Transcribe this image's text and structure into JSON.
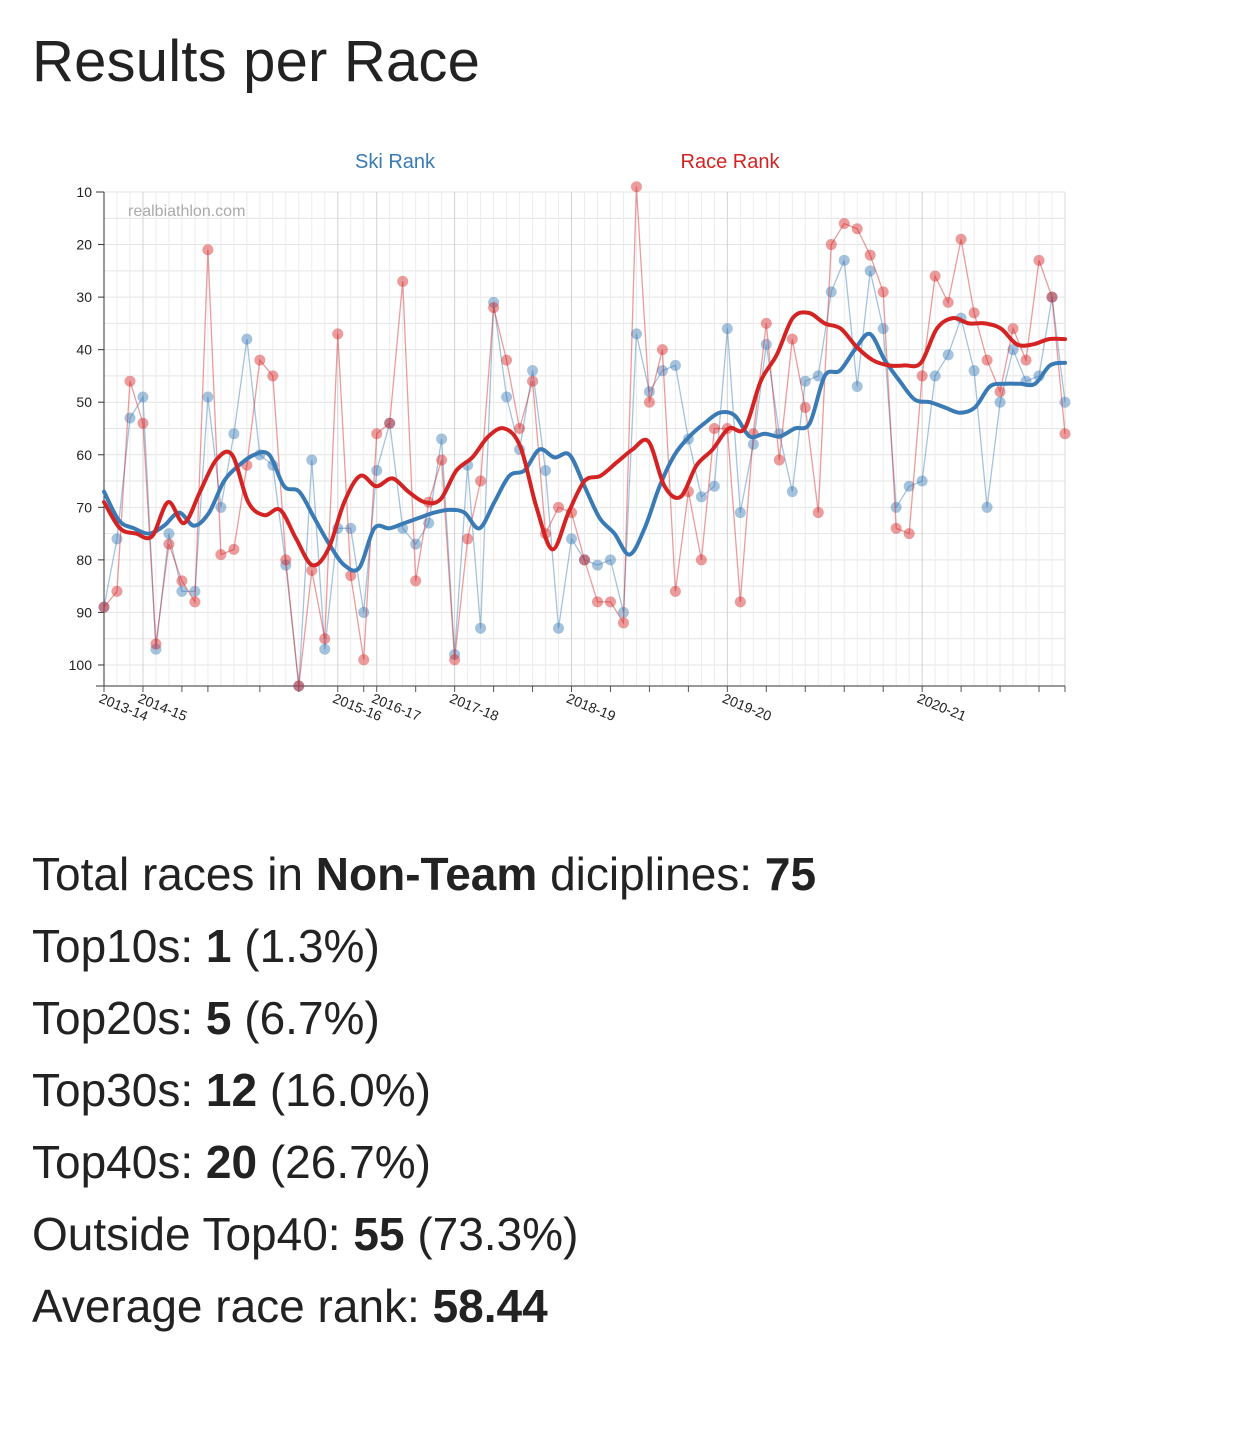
{
  "page_title": "Results per Race",
  "chart_data": {
    "type": "line",
    "watermark": "realbiathlon.com",
    "y_axis": {
      "reversed": true,
      "range": [
        10,
        104
      ],
      "ticks": [
        10,
        20,
        30,
        40,
        50,
        60,
        70,
        80,
        90,
        100
      ]
    },
    "seasons": [
      {
        "label": "2013-14",
        "race": 0
      },
      {
        "label": "2014-15",
        "race": 3
      },
      {
        "label": "2015-16",
        "race": 18
      },
      {
        "label": "2016-17",
        "race": 21
      },
      {
        "label": "2017-18",
        "race": 27
      },
      {
        "label": "2018-19",
        "race": 36
      },
      {
        "label": "2019-20",
        "race": 48
      },
      {
        "label": "2020-21",
        "race": 63
      }
    ],
    "minor_tick_races": [
      0,
      3,
      6,
      8,
      12,
      15,
      18,
      20,
      21,
      24,
      27,
      30,
      33,
      36,
      39,
      42,
      45,
      48,
      51,
      54,
      57,
      60,
      63,
      66,
      69,
      72,
      74
    ],
    "series": [
      {
        "name": "Ski Rank",
        "color": "#3a7ab5",
        "values": [
          89,
          76,
          53,
          49,
          97,
          75,
          86,
          86,
          49,
          70,
          56,
          38,
          60,
          62,
          81,
          104,
          61,
          97,
          74,
          74,
          90,
          63,
          54,
          74,
          77,
          73,
          57,
          98,
          62,
          93,
          31,
          49,
          59,
          44,
          63,
          93,
          76,
          80,
          81,
          80,
          90,
          37,
          48,
          44,
          43,
          57,
          68,
          66,
          36,
          71,
          58,
          39,
          56,
          67,
          46,
          45,
          29,
          23,
          47,
          25,
          36,
          70,
          66,
          65,
          45,
          41,
          34,
          44,
          70,
          50,
          40,
          46,
          45,
          30,
          50
        ],
        "trend": [
          67,
          72.5,
          74,
          75,
          73.5,
          71,
          73.5,
          71,
          65,
          62,
          60,
          60,
          66,
          67,
          72,
          77,
          81,
          81.5,
          74,
          74,
          73,
          72,
          71,
          70.5,
          71,
          74,
          69,
          64,
          63,
          59,
          60.5,
          60,
          66,
          72,
          75,
          79,
          74,
          66,
          60,
          56.5,
          54,
          52,
          52.5,
          56.5,
          56,
          56.5,
          55,
          54,
          45,
          44,
          40,
          37,
          42,
          46,
          49.5,
          50,
          51,
          52,
          51,
          47,
          46.5,
          46.5,
          46.5,
          43,
          42.5
        ]
      },
      {
        "name": "Race Rank",
        "color": "#d42323",
        "values": [
          89,
          86,
          46,
          54,
          96,
          77,
          84,
          88,
          21,
          79,
          78,
          62,
          42,
          45,
          80,
          104,
          82,
          95,
          37,
          83,
          99,
          56,
          54,
          27,
          84,
          69,
          61,
          99,
          76,
          65,
          32,
          42,
          55,
          46,
          75,
          70,
          71,
          80,
          88,
          88,
          92,
          9,
          50,
          40,
          86,
          67,
          80,
          55,
          55,
          88,
          56,
          35,
          61,
          38,
          51,
          71,
          20,
          16,
          17,
          22,
          29,
          74,
          75,
          45,
          26,
          31,
          19,
          33,
          42,
          48,
          36,
          42,
          23,
          30,
          56
        ],
        "trend": [
          69,
          74,
          75,
          75.5,
          69,
          73,
          67,
          61,
          60,
          69,
          71.5,
          70.5,
          76,
          81,
          78,
          69,
          64,
          66,
          64.5,
          67,
          69,
          68.5,
          63,
          60.5,
          56.5,
          55,
          58.5,
          70,
          78,
          71,
          65,
          64,
          61.5,
          59,
          57.5,
          66,
          68,
          62,
          59,
          55,
          55,
          46,
          41,
          34,
          33,
          35,
          36,
          39.5,
          42,
          43,
          43,
          42.5,
          36,
          34,
          35,
          35,
          36,
          39,
          39,
          38,
          38
        ]
      }
    ]
  },
  "stats": [
    {
      "label": "Total races in ",
      "emph": "Non-Team",
      "mid": " diciplines: ",
      "value": "75",
      "suffix": ""
    },
    {
      "label": "Top10s: ",
      "emph": "",
      "mid": "",
      "value": "1",
      "suffix": " (1.3%)"
    },
    {
      "label": "Top20s: ",
      "emph": "",
      "mid": "",
      "value": "5",
      "suffix": " (6.7%)"
    },
    {
      "label": "Top30s: ",
      "emph": "",
      "mid": "",
      "value": "12",
      "suffix": " (16.0%)"
    },
    {
      "label": "Top40s: ",
      "emph": "",
      "mid": "",
      "value": "20",
      "suffix": " (26.7%)"
    },
    {
      "label": "Outside Top40: ",
      "emph": "",
      "mid": "",
      "value": "55",
      "suffix": " (73.3%)"
    },
    {
      "label": "Average race rank: ",
      "emph": "",
      "mid": "",
      "value": "58.44",
      "suffix": ""
    }
  ]
}
